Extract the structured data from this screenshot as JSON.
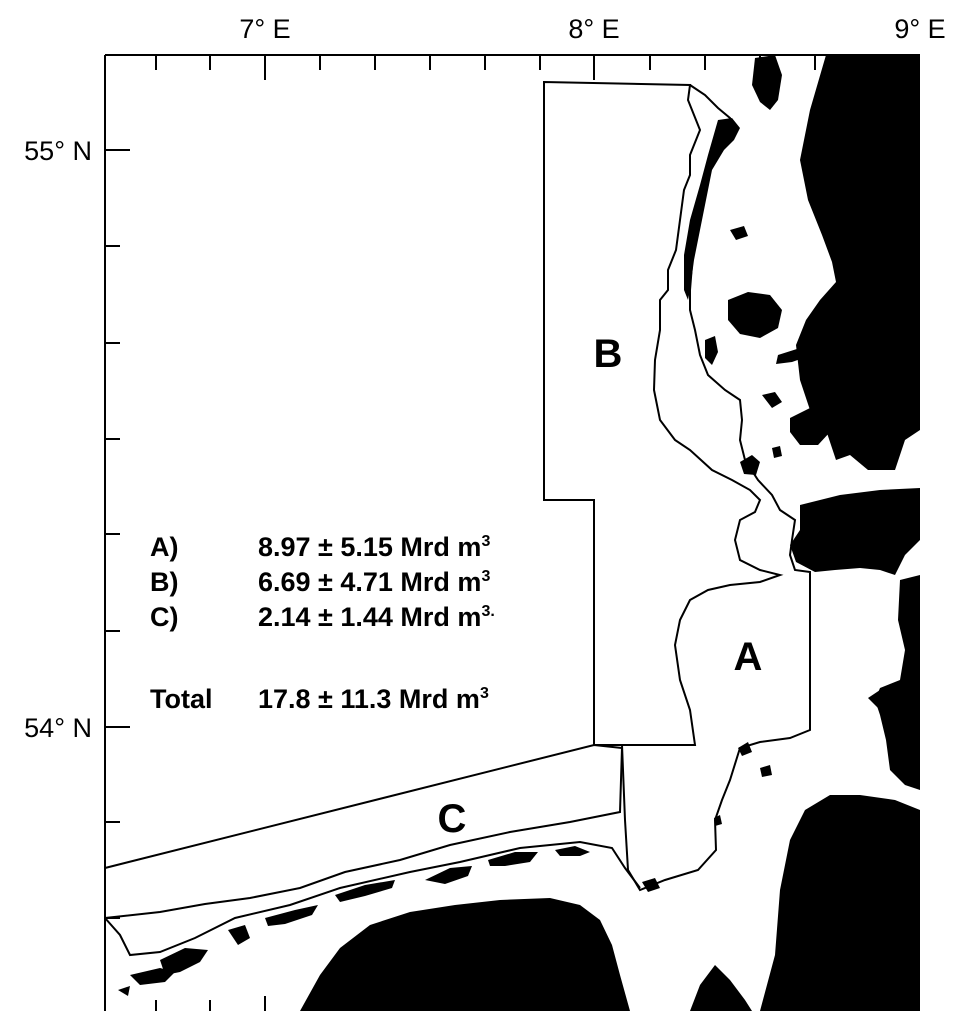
{
  "axes": {
    "top_labels": [
      "7° E",
      "8° E",
      "9° E"
    ],
    "left_labels": [
      "55° N",
      "54° N"
    ]
  },
  "regions": {
    "a_label": "A",
    "b_label": "B",
    "c_label": "C"
  },
  "legend": {
    "rows": [
      {
        "key": "A)",
        "value": "8.97 ± 5.15 Mrd m",
        "sup": "3"
      },
      {
        "key": "B)",
        "value": "6.69 ± 4.71 Mrd m",
        "sup": "3"
      },
      {
        "key": "C)",
        "value": "2.14 ± 1.44 Mrd m",
        "sup": "3."
      }
    ],
    "total_key": "Total",
    "total_value": "17.8 ± 11.3 Mrd m",
    "total_sup": "3"
  }
}
